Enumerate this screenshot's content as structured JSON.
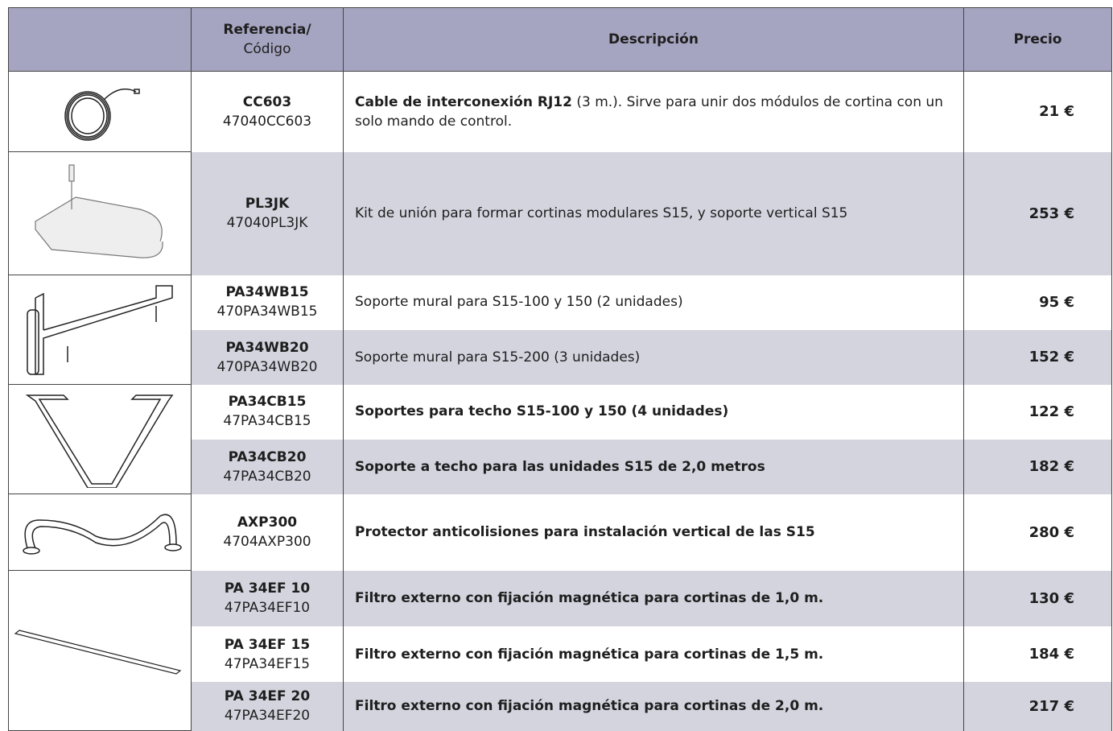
{
  "header": {
    "reference": {
      "title": "Referencia/",
      "subtitle": "Código"
    },
    "description": "Descripción",
    "price": "Precio"
  },
  "rows": [
    {
      "code": "CC603",
      "ref": "47040CC603",
      "description": [
        {
          "text": "Cable de interconexión RJ12",
          "bold": true
        },
        {
          "text": " (3 m.). Sirve para unir dos módulos de cortina con un solo mando de control.",
          "bold": false
        }
      ],
      "price": "21 €"
    },
    {
      "code": "PL3JK",
      "ref": "47040PL3JK",
      "description": [
        {
          "text": "Kit de unión para formar cortinas modulares S15, y soporte vertical S15",
          "bold": false
        }
      ],
      "price": "253 €"
    },
    {
      "code": "PA34WB15",
      "ref": "470PA34WB15",
      "description": [
        {
          "text": "Soporte mural para S15-100 y 150 (2 unidades)",
          "bold": false
        }
      ],
      "price": "95 €"
    },
    {
      "code": "PA34WB20",
      "ref": "470PA34WB20",
      "description": [
        {
          "text": "Soporte mural para S15-200 (3 unidades)",
          "bold": false
        }
      ],
      "price": "152 €"
    },
    {
      "code": "PA34CB15",
      "ref": "47PA34CB15",
      "description": [
        {
          "text": "Soportes para techo S15-100 y 150 (4 unidades)",
          "bold": true
        }
      ],
      "price": "122 €"
    },
    {
      "code": "PA34CB20",
      "ref": "47PA34CB20",
      "description": [
        {
          "text": "Soporte a techo para las unidades S15 de 2,0 metros",
          "bold": true
        }
      ],
      "price": "182 €"
    },
    {
      "code": "AXP300",
      "ref": "4704AXP300",
      "description": [
        {
          "text": "Protector anticolisiones para instalación vertical de las S15",
          "bold": true
        }
      ],
      "price": "280 €"
    },
    {
      "code": "PA 34EF 10",
      "ref": "47PA34EF10",
      "description": [
        {
          "text": "Filtro externo con fijación magnética para cortinas de 1,0 m.",
          "bold": true
        }
      ],
      "price": "130 €"
    },
    {
      "code": "PA 34EF 15",
      "ref": "47PA34EF15",
      "description": [
        {
          "text": "Filtro externo con fijación magnética para cortinas de 1,5 m.",
          "bold": true
        }
      ],
      "price": "184 €"
    },
    {
      "code": "PA 34EF 20",
      "ref": "47PA34EF20",
      "description": [
        {
          "text": "Filtro externo con fijación magnética para cortinas de 2,0 m.",
          "bold": true
        }
      ],
      "price": "217 €"
    }
  ]
}
